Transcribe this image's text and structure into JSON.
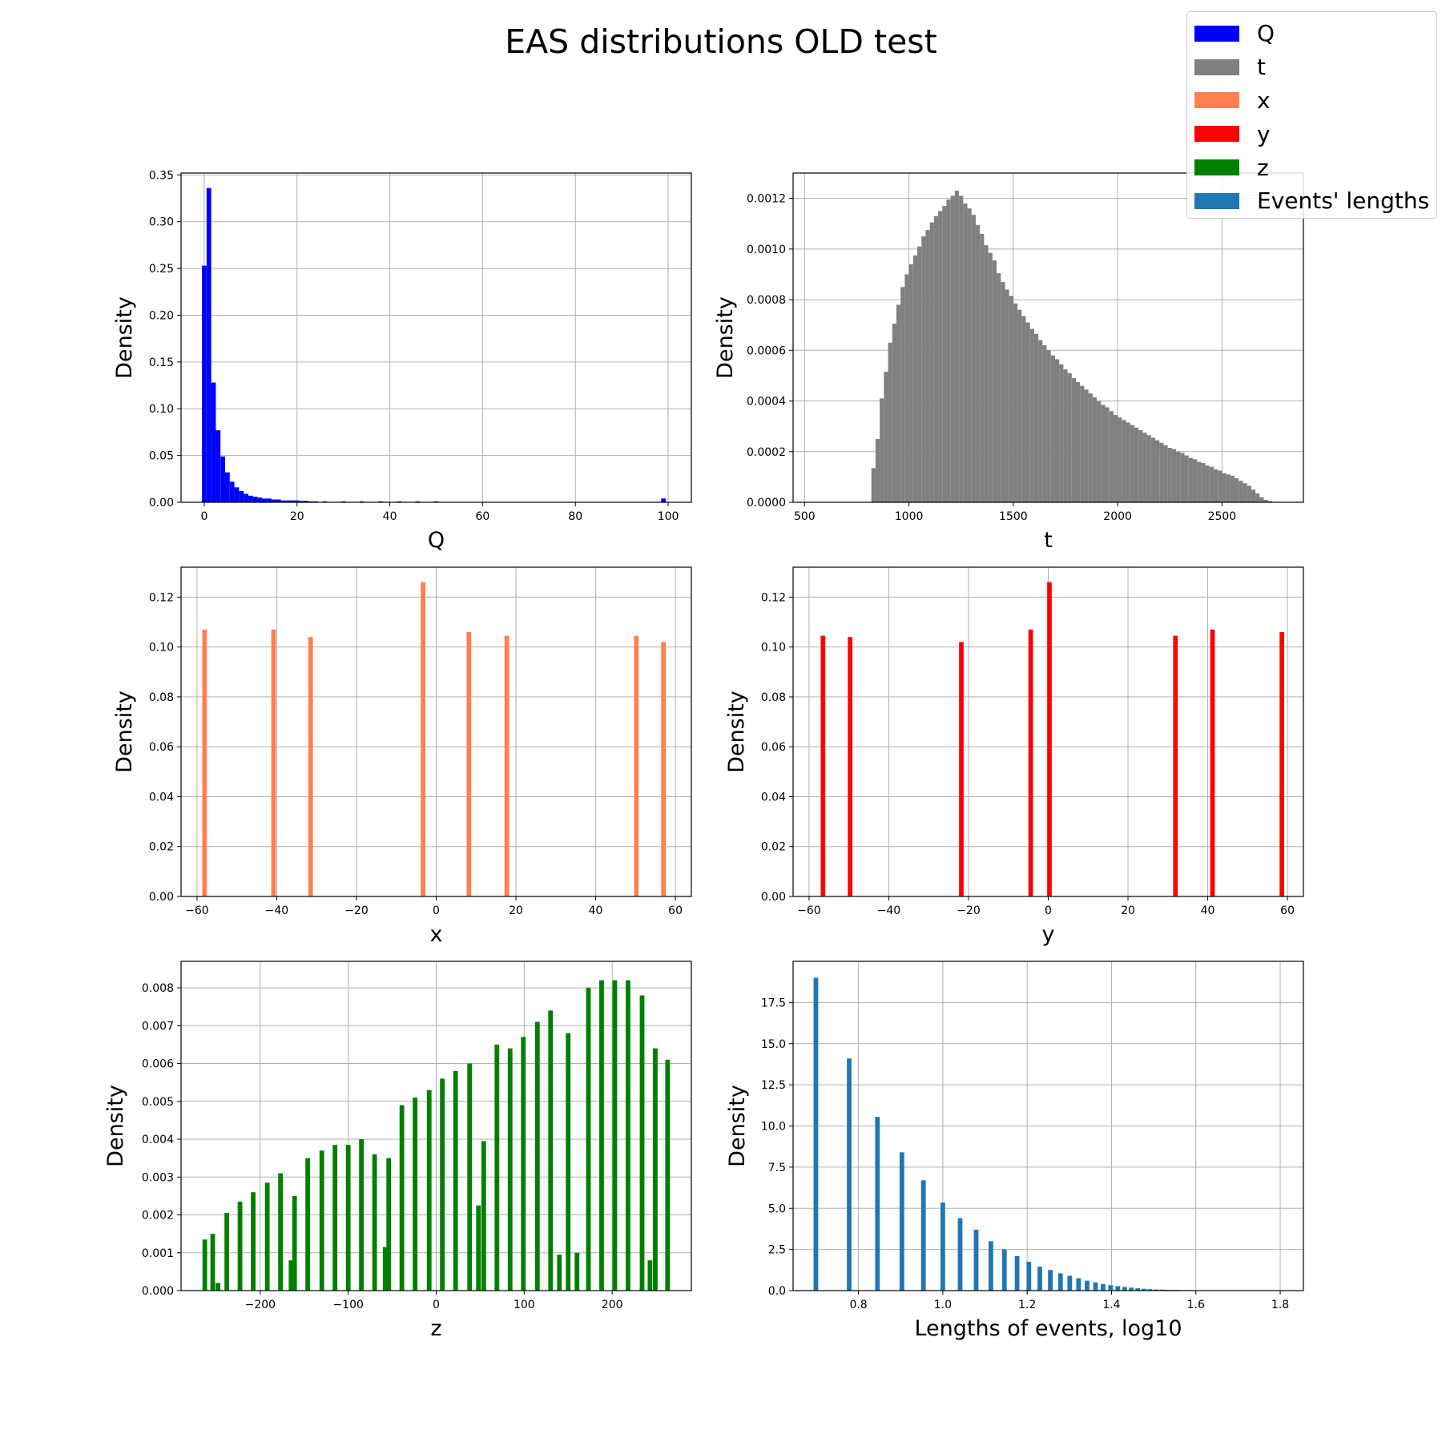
{
  "title": "EAS distributions OLD test",
  "legend": [
    {
      "label": "Q",
      "color": "#0000ff"
    },
    {
      "label": "t",
      "color": "#808080"
    },
    {
      "label": "x",
      "color": "#ff7f50"
    },
    {
      "label": "y",
      "color": "#ff0000"
    },
    {
      "label": "z",
      "color": "#008000"
    },
    {
      "label": "Events' lengths",
      "color": "#1f77b4"
    }
  ],
  "chart_data": [
    {
      "type": "bar",
      "name": "Q",
      "color": "#0000ff",
      "xlabel": "Q",
      "ylabel": "Density",
      "xlim": [
        -5,
        105
      ],
      "ylim": [
        0,
        0.352
      ],
      "xticks": [
        0,
        20,
        40,
        60,
        80,
        100
      ],
      "yticks": [
        0.0,
        0.05,
        0.1,
        0.15,
        0.2,
        0.25,
        0.3,
        0.35
      ],
      "ytick_labels": [
        "0.00",
        "0.05",
        "0.10",
        "0.15",
        "0.20",
        "0.25",
        "0.30",
        "0.35"
      ],
      "bin_width": 1,
      "x": [
        0,
        1,
        2,
        3,
        4,
        5,
        6,
        7,
        8,
        9,
        10,
        11,
        12,
        13,
        14,
        15,
        16,
        17,
        18,
        19,
        20,
        21,
        22,
        23,
        24,
        26,
        30,
        34,
        38,
        42,
        46,
        50,
        99
      ],
      "values": [
        0.253,
        0.336,
        0.128,
        0.077,
        0.049,
        0.032,
        0.022,
        0.016,
        0.012,
        0.009,
        0.007,
        0.006,
        0.005,
        0.004,
        0.004,
        0.003,
        0.003,
        0.002,
        0.002,
        0.002,
        0.002,
        0.0015,
        0.0015,
        0.001,
        0.001,
        0.001,
        0.001,
        0.001,
        0.001,
        0.001,
        0.001,
        0.001,
        0.004
      ]
    },
    {
      "type": "bar",
      "name": "t",
      "color": "#808080",
      "xlabel": "t",
      "ylabel": "Density",
      "xlim": [
        445,
        2890
      ],
      "ylim": [
        0,
        0.0013
      ],
      "xticks": [
        500,
        1000,
        1500,
        2000,
        2500
      ],
      "yticks": [
        0,
        0.0002,
        0.0004,
        0.0006,
        0.0008,
        0.001,
        0.0012
      ],
      "ytick_labels": [
        "0.0000",
        "0.0002",
        "0.0004",
        "0.0006",
        "0.0008",
        "0.0010",
        "0.0012"
      ],
      "bin_width": 20,
      "x": [
        830,
        850,
        870,
        890,
        910,
        930,
        950,
        970,
        990,
        1010,
        1030,
        1050,
        1070,
        1090,
        1110,
        1130,
        1150,
        1170,
        1190,
        1210,
        1230,
        1250,
        1270,
        1290,
        1310,
        1330,
        1350,
        1370,
        1390,
        1410,
        1430,
        1450,
        1470,
        1490,
        1510,
        1530,
        1550,
        1570,
        1590,
        1610,
        1630,
        1650,
        1670,
        1690,
        1710,
        1730,
        1750,
        1770,
        1790,
        1810,
        1830,
        1850,
        1870,
        1890,
        1910,
        1930,
        1950,
        1970,
        1990,
        2010,
        2030,
        2050,
        2070,
        2090,
        2110,
        2130,
        2150,
        2170,
        2190,
        2210,
        2230,
        2250,
        2270,
        2290,
        2310,
        2330,
        2350,
        2370,
        2390,
        2410,
        2430,
        2450,
        2470,
        2490,
        2510,
        2530,
        2550,
        2570,
        2590,
        2610,
        2630,
        2650,
        2670,
        2690,
        2710,
        2730,
        2750
      ],
      "values": [
        0.000135,
        0.00025,
        0.00041,
        0.000515,
        0.00063,
        0.000705,
        0.00078,
        0.00085,
        0.0009,
        0.00094,
        0.000975,
        0.00101,
        0.00105,
        0.001075,
        0.001105,
        0.00113,
        0.00115,
        0.00117,
        0.001195,
        0.00121,
        0.00123,
        0.00121,
        0.00118,
        0.00116,
        0.001135,
        0.001095,
        0.00106,
        0.001015,
        0.000985,
        0.000955,
        0.000905,
        0.00087,
        0.00084,
        0.000815,
        0.000785,
        0.00076,
        0.000735,
        0.00071,
        0.000685,
        0.000665,
        0.00064,
        0.00062,
        0.0006,
        0.00058,
        0.000565,
        0.000545,
        0.000525,
        0.00051,
        0.00049,
        0.000475,
        0.00046,
        0.000445,
        0.00043,
        0.000415,
        0.0004,
        0.000385,
        0.000375,
        0.00036,
        0.000345,
        0.000335,
        0.000325,
        0.000315,
        0.000305,
        0.000295,
        0.000285,
        0.000275,
        0.000265,
        0.000255,
        0.000245,
        0.000235,
        0.000225,
        0.000215,
        0.00021,
        0.0002,
        0.000195,
        0.000185,
        0.000175,
        0.00017,
        0.00016,
        0.000155,
        0.000145,
        0.00014,
        0.00013,
        0.000125,
        0.000115,
        0.00011,
        0.000105,
        9.5e-05,
        8.5e-05,
        7.5e-05,
        6.5e-05,
        5e-05,
        3.5e-05,
        2e-05,
        1e-05,
        5e-06,
        2e-06
      ]
    },
    {
      "type": "bar",
      "name": "x",
      "color": "#ff7f50",
      "xlabel": "x",
      "ylabel": "Density",
      "xlim": [
        -64,
        64
      ],
      "ylim": [
        0,
        0.132
      ],
      "xticks": [
        -60,
        -40,
        -20,
        0,
        20,
        40,
        60
      ],
      "yticks": [
        0.0,
        0.02,
        0.04,
        0.06,
        0.08,
        0.1,
        0.12
      ],
      "ytick_labels": [
        "0.00",
        "0.02",
        "0.04",
        "0.06",
        "0.08",
        "0.10",
        "0.12"
      ],
      "bin_width": 1.15,
      "x": [
        -58.1,
        -40.8,
        -31.5,
        -3.3,
        8.2,
        17.7,
        50.2,
        57.0
      ],
      "values": [
        0.107,
        0.107,
        0.104,
        0.126,
        0.106,
        0.1045,
        0.1045,
        0.102
      ]
    },
    {
      "type": "bar",
      "name": "y",
      "color": "#ff0000",
      "xlabel": "y",
      "ylabel": "Density",
      "xlim": [
        -64,
        64
      ],
      "ylim": [
        0,
        0.132
      ],
      "xticks": [
        -60,
        -40,
        -20,
        0,
        20,
        40,
        60
      ],
      "yticks": [
        0.0,
        0.02,
        0.04,
        0.06,
        0.08,
        0.1,
        0.12
      ],
      "ytick_labels": [
        "0.00",
        "0.02",
        "0.04",
        "0.06",
        "0.08",
        "0.10",
        "0.12"
      ],
      "bin_width": 1.15,
      "x": [
        -56.5,
        -49.7,
        -21.8,
        -4.4,
        0.3,
        31.9,
        41.2,
        58.6
      ],
      "values": [
        0.1045,
        0.104,
        0.102,
        0.107,
        0.126,
        0.1045,
        0.107,
        0.106
      ]
    },
    {
      "type": "bar",
      "name": "z",
      "color": "#008000",
      "xlabel": "z",
      "ylabel": "Density",
      "xlim": [
        -290,
        290
      ],
      "ylim": [
        0,
        0.0087
      ],
      "xticks": [
        -200,
        -100,
        0,
        100,
        200
      ],
      "yticks": [
        0,
        0.001,
        0.002,
        0.003,
        0.004,
        0.005,
        0.006,
        0.007,
        0.008
      ],
      "ytick_labels": [
        "0.000",
        "0.001",
        "0.002",
        "0.003",
        "0.004",
        "0.005",
        "0.006",
        "0.007",
        "0.008"
      ],
      "bin_width": 5.3,
      "x": [
        -263,
        -254,
        -248,
        -238,
        -223,
        -208,
        -192,
        -177,
        -165,
        -161,
        -146,
        -130,
        -115,
        -100,
        -85,
        -70,
        -58,
        -54,
        -39,
        -24,
        -8,
        7,
        22,
        38,
        48,
        54,
        69,
        84,
        99,
        115,
        130,
        140,
        150,
        160,
        173,
        188,
        203,
        218,
        234,
        243,
        249,
        263
      ],
      "values": [
        0.00135,
        0.0015,
        0.0002,
        0.00205,
        0.00235,
        0.0026,
        0.00285,
        0.0031,
        0.0008,
        0.0025,
        0.0035,
        0.0037,
        0.00385,
        0.00385,
        0.004,
        0.0036,
        0.00115,
        0.0035,
        0.0049,
        0.0051,
        0.0053,
        0.0056,
        0.0058,
        0.006,
        0.00225,
        0.00395,
        0.0065,
        0.0064,
        0.0067,
        0.0071,
        0.0074,
        0.00095,
        0.0068,
        0.001,
        0.008,
        0.0082,
        0.0082,
        0.0082,
        0.0078,
        0.0008,
        0.0064,
        0.0061
      ]
    },
    {
      "type": "bar",
      "name": "Events' lengths",
      "color": "#1f77b4",
      "xlabel": "Lengths of events, log10",
      "ylabel": "Density",
      "xlim": [
        0.645,
        1.855
      ],
      "ylim": [
        0,
        20.0
      ],
      "xticks": [
        0.8,
        1.0,
        1.2,
        1.4,
        1.6,
        1.8
      ],
      "xtick_labels": [
        "0.8",
        "1.0",
        "1.2",
        "1.4",
        "1.6",
        "1.8"
      ],
      "yticks": [
        0,
        2.5,
        5.0,
        7.5,
        10.0,
        12.5,
        15.0,
        17.5
      ],
      "ytick_labels": [
        "0.0",
        "2.5",
        "5.0",
        "7.5",
        "10.0",
        "12.5",
        "15.0",
        "17.5"
      ],
      "bin_width": 0.011,
      "x": [
        0.699,
        0.778,
        0.845,
        0.903,
        0.954,
        1.0,
        1.041,
        1.079,
        1.114,
        1.146,
        1.176,
        1.204,
        1.23,
        1.255,
        1.279,
        1.301,
        1.322,
        1.342,
        1.362,
        1.38,
        1.398,
        1.415,
        1.431,
        1.447,
        1.462,
        1.477,
        1.491,
        1.505,
        1.519,
        1.531,
        1.544,
        1.556,
        1.568,
        1.58,
        1.591
      ],
      "values": [
        19.0,
        14.1,
        10.55,
        8.4,
        6.7,
        5.35,
        4.4,
        3.7,
        3.0,
        2.5,
        2.1,
        1.75,
        1.45,
        1.25,
        1.05,
        0.9,
        0.75,
        0.6,
        0.5,
        0.4,
        0.33,
        0.27,
        0.22,
        0.18,
        0.14,
        0.11,
        0.09,
        0.07,
        0.06,
        0.05,
        0.04,
        0.04,
        0.03,
        0.03,
        0.02
      ]
    }
  ]
}
